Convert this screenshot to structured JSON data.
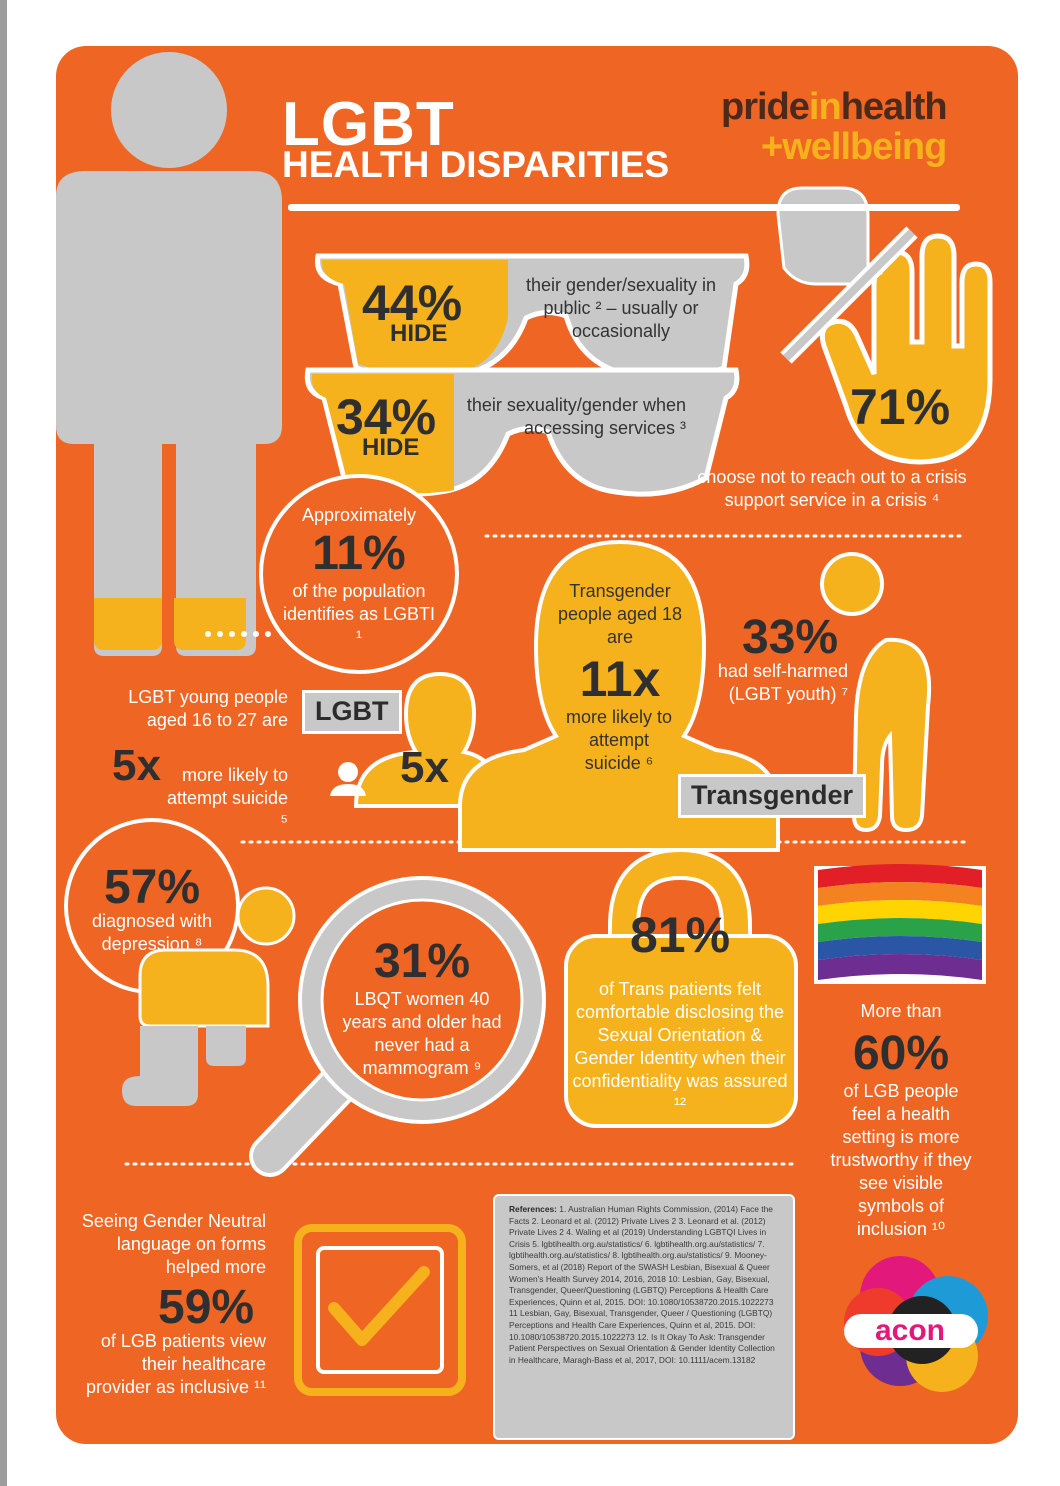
{
  "header": {
    "title_line1": "LGBT",
    "title_line2": "HEALTH DISPARITIES"
  },
  "brand": {
    "part1": "pride",
    "part2": "in",
    "part3": "health",
    "part4": "+wellbeing",
    "acon_logo": "acon"
  },
  "stats": {
    "hide_public": {
      "value": "44%",
      "label": "HIDE",
      "text": "their gender/sexuality in public ² – usually or occasionally"
    },
    "hide_services": {
      "value": "34%",
      "label": "HIDE",
      "text": "their sexuality/gender when accessing services ³"
    },
    "crisis": {
      "value": "71%",
      "text": "choose not to reach out to a crisis support service in a crisis ⁴"
    },
    "population": {
      "pre": "Approximately",
      "value": "11%",
      "text": "of the population identifies as LGBTI ¹"
    },
    "trans_suicide": {
      "pre": "Transgender people aged 18 are",
      "value": "11x",
      "text": "more likely to attempt suicide ⁶",
      "tag": "Transgender"
    },
    "self_harm": {
      "value": "33%",
      "text": "had self-harmed (LGBT youth) ⁷"
    },
    "youth_suicide": {
      "pre": "LGBT young people aged 16 to 27 are",
      "value": "5x",
      "text": "more likely to attempt suicide ⁵",
      "tag": "LGBT",
      "figure_value": "5x"
    },
    "depression": {
      "value": "57%",
      "text": "diagnosed with depression ⁸"
    },
    "mammogram": {
      "value": "31%",
      "text": "LBQT women 40 years and older had never had a mammogram ⁹"
    },
    "disclosure": {
      "value": "81%",
      "text": "of Trans patients felt comfortable disclosing the Sexual Orientation & Gender Identity when their confidentiality was assured ¹²"
    },
    "trust": {
      "pre": "More than",
      "value": "60%",
      "text": "of LGB people feel a health setting is more trustworthy if they see visible symbols of inclusion ¹⁰"
    },
    "inclusive": {
      "pre": "Seeing Gender Neutral language on forms helped more",
      "value": "59%",
      "text": "of LGB patients view their healthcare provider as inclusive ¹¹"
    }
  },
  "references": {
    "label": "References:",
    "text": "1. Australian Human Rights Commission, (2014) Face the Facts  2. Leonard et al. (2012) Private Lives 2  3. Leonard et al. (2012) Private Lives 2  4. Waling et al (2019) Understanding LGBTQI Lives in Crisis  5. lgbtihealth.org.au/statistics/  6. lgbtihealth.org.au/statistics/  7. lgbtihealth.org.au/statistics/  8. lgbtihealth.org.au/statistics/  9. Mooney-Somers, et al (2018) Report of the SWASH Lesbian, Bisexual & Queer Women's Health Survey 2014, 2016, 2018  10: Lesbian, Gay, Bisexual, Transgender, Queer/Questioning (LGBTQ) Perceptions & Health Care Experiences, Quinn et al, 2015. DOI: 10.1080/10538720.2015.1022273  11 Lesbian, Gay, Bisexual, Transgender, Queer / Questioning (LGBTQ) Perceptions and Health Care Experiences, Quinn et al, 2015. DOI: 10.1080/10538720.2015.1022273  12. Is It Okay To Ask: Transgender Patient Perspectives on Sexual Orientation & Gender Identity Collection in Healthcare, Maragh-Bass et al, 2017, DOI: 10.1111/acem.13182"
  },
  "colors": {
    "background": "#ef6523",
    "accent": "#f6b21c",
    "grey": "#c8c8c8",
    "text_dark": "#2f2f2f"
  },
  "icons": [
    "person-figure-icon",
    "glasses-icon",
    "stop-hand-icon",
    "head-silhouette-icon",
    "bent-person-icon",
    "kneeling-person-icon",
    "magnifier-icon",
    "padlock-icon",
    "rainbow-flag-icon",
    "checkbox-icon",
    "user-icon",
    "acon-logo-icon"
  ]
}
